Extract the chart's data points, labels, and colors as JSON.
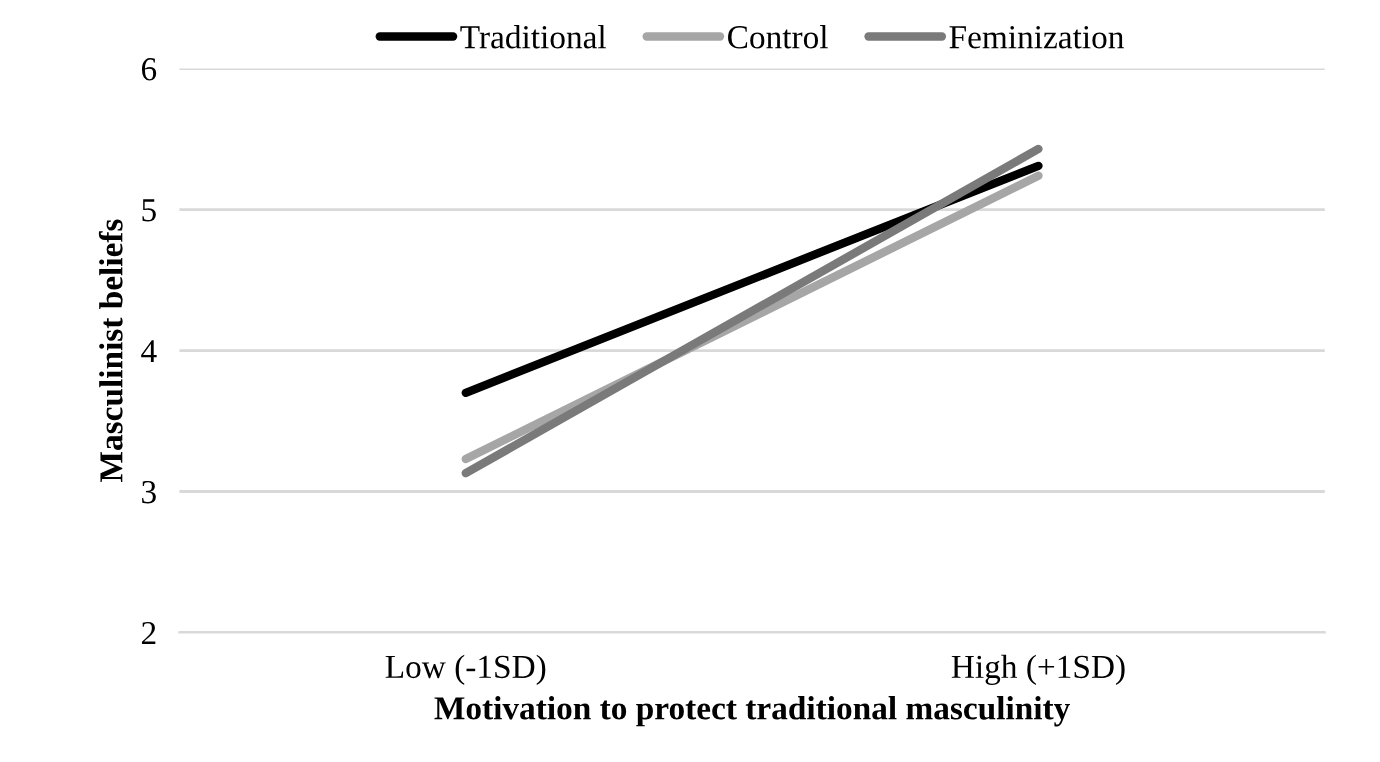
{
  "chart_data": {
    "type": "line",
    "xlabel": "Motivation to protect traditional masculinity",
    "ylabel": "Masculinist beliefs",
    "categories": [
      "Low (-1SD)",
      "High (+1SD)"
    ],
    "series": [
      {
        "name": "Traditional",
        "color": "#000000",
        "values": [
          3.7,
          5.31
        ]
      },
      {
        "name": "Control",
        "color": "#a6a6a6",
        "values": [
          3.23,
          5.24
        ]
      },
      {
        "name": "Feminization",
        "color": "#7a7a7a",
        "values": [
          3.13,
          5.43
        ]
      }
    ],
    "ylim": [
      2,
      6
    ],
    "yticks": [
      2,
      3,
      4,
      5,
      6
    ],
    "grid": "y",
    "legend": "top",
    "marker": "none",
    "line_style": "solid"
  }
}
